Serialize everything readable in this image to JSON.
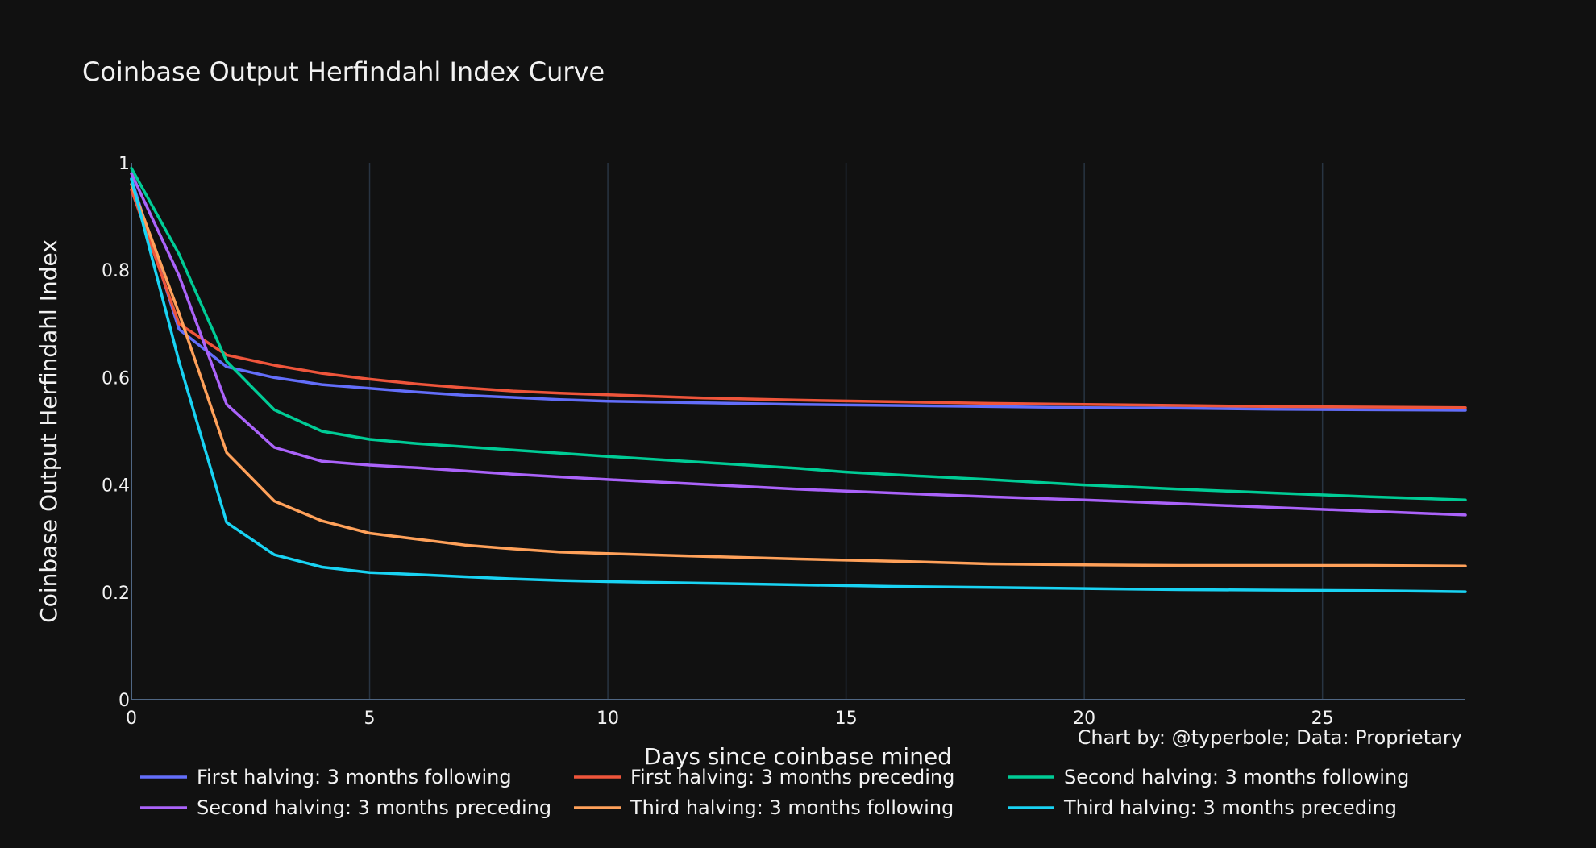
{
  "chart_data": {
    "type": "line",
    "title": "Coinbase Output Herfindahl Index Curve",
    "xlabel": "Days since coinbase mined",
    "ylabel": "Coinbase Output Herfindahl Index",
    "xlim": [
      0,
      28
    ],
    "ylim": [
      0,
      1
    ],
    "x_ticks": [
      0,
      5,
      10,
      15,
      20,
      25
    ],
    "y_ticks": [
      0,
      0.2,
      0.4,
      0.6,
      0.8,
      1
    ],
    "y_tick_labels": [
      "0",
      "0.2",
      "0.4",
      "0.6",
      "0.8",
      "1"
    ],
    "grid": "vertical",
    "legend_position": "bottom",
    "annotation": "Chart by: @typerbole; Data: Proprietary",
    "series": [
      {
        "name": "First halving: 3 months following",
        "color": "#636efa",
        "x": [
          0,
          1,
          2,
          3,
          4,
          5,
          6,
          7,
          8,
          9,
          10,
          12,
          14,
          16,
          18,
          20,
          22,
          24,
          26,
          28
        ],
        "y": [
          0.97,
          0.69,
          0.62,
          0.6,
          0.587,
          0.58,
          0.573,
          0.567,
          0.563,
          0.559,
          0.556,
          0.553,
          0.55,
          0.548,
          0.546,
          0.544,
          0.543,
          0.541,
          0.54,
          0.539
        ]
      },
      {
        "name": "First halving: 3 months preceding",
        "color": "#ef553b",
        "x": [
          0,
          1,
          2,
          3,
          4,
          5,
          6,
          7,
          8,
          9,
          10,
          12,
          14,
          16,
          18,
          20,
          22,
          24,
          26,
          28
        ],
        "y": [
          0.95,
          0.7,
          0.642,
          0.623,
          0.608,
          0.597,
          0.588,
          0.581,
          0.575,
          0.571,
          0.568,
          0.562,
          0.558,
          0.555,
          0.552,
          0.55,
          0.548,
          0.546,
          0.545,
          0.544
        ]
      },
      {
        "name": "Second halving: 3 months following",
        "color": "#00cc96",
        "x": [
          0,
          1,
          2,
          3,
          4,
          5,
          6,
          7,
          8,
          9,
          10,
          12,
          14,
          15,
          16,
          18,
          20,
          22,
          24,
          26,
          28
        ],
        "y": [
          0.99,
          0.83,
          0.63,
          0.54,
          0.5,
          0.485,
          0.477,
          0.471,
          0.465,
          0.459,
          0.453,
          0.442,
          0.431,
          0.424,
          0.419,
          0.41,
          0.4,
          0.392,
          0.385,
          0.378,
          0.372
        ]
      },
      {
        "name": "Second halving: 3 months preceding",
        "color": "#ab63fa",
        "x": [
          0,
          1,
          2,
          3,
          4,
          5,
          6,
          7,
          8,
          9,
          10,
          12,
          14,
          16,
          18,
          20,
          22,
          24,
          26,
          28
        ],
        "y": [
          0.98,
          0.79,
          0.55,
          0.47,
          0.444,
          0.437,
          0.432,
          0.426,
          0.42,
          0.415,
          0.41,
          0.401,
          0.392,
          0.385,
          0.378,
          0.372,
          0.365,
          0.358,
          0.351,
          0.344
        ]
      },
      {
        "name": "Third halving: 3 months following",
        "color": "#ffa15a",
        "x": [
          0,
          1,
          2,
          3,
          4,
          5,
          6,
          7,
          8,
          9,
          10,
          12,
          14,
          16,
          18,
          20,
          22,
          24,
          26,
          28
        ],
        "y": [
          0.96,
          0.72,
          0.46,
          0.37,
          0.333,
          0.31,
          0.299,
          0.288,
          0.281,
          0.275,
          0.272,
          0.267,
          0.262,
          0.258,
          0.253,
          0.251,
          0.25,
          0.25,
          0.25,
          0.249
        ]
      },
      {
        "name": "Third halving: 3 months preceding",
        "color": "#19d3f3",
        "x": [
          0,
          1,
          2,
          3,
          4,
          5,
          6,
          7,
          8,
          9,
          10,
          12,
          14,
          16,
          18,
          20,
          22,
          24,
          26,
          28
        ],
        "y": [
          0.97,
          0.63,
          0.33,
          0.27,
          0.247,
          0.237,
          0.233,
          0.229,
          0.225,
          0.222,
          0.22,
          0.217,
          0.214,
          0.211,
          0.209,
          0.207,
          0.205,
          0.204,
          0.203,
          0.201
        ]
      }
    ]
  }
}
